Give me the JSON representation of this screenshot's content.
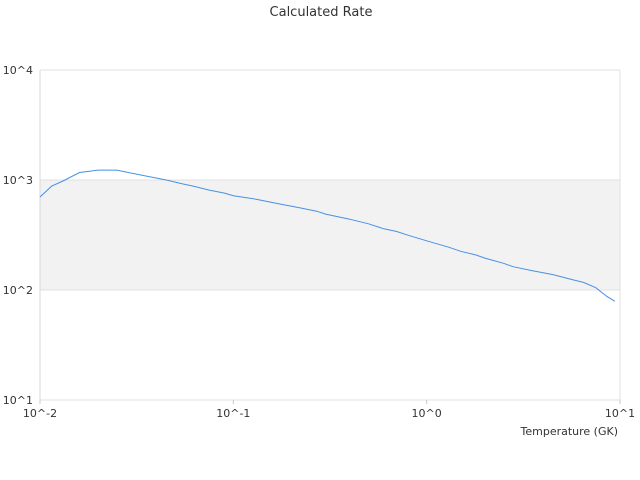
{
  "chart_data": {
    "type": "line",
    "title": "Calculated Rate",
    "xlabel": "Temperature (GK)",
    "ylabel": "",
    "x_scale": "log",
    "y_scale": "log",
    "xlim": [
      0.01,
      10
    ],
    "ylim": [
      10,
      10000
    ],
    "x_ticks": [
      {
        "value": 0.01,
        "label": "10^-2"
      },
      {
        "value": 0.1,
        "label": "10^-1"
      },
      {
        "value": 1,
        "label": "10^0"
      },
      {
        "value": 10,
        "label": "10^1"
      }
    ],
    "y_ticks": [
      {
        "value": 10,
        "label": "10^1"
      },
      {
        "value": 100,
        "label": "10^2"
      },
      {
        "value": 1000,
        "label": "10^3"
      },
      {
        "value": 10000,
        "label": "10^4"
      }
    ],
    "grid": true,
    "legend": "none",
    "band_colors": [
      "#ffffff",
      "#f2f2f2",
      "#ffffff"
    ],
    "series": [
      {
        "color": "#4a90e2",
        "points": [
          [
            0.01,
            700
          ],
          [
            0.0115,
            880
          ],
          [
            0.013,
            970
          ],
          [
            0.016,
            1170
          ],
          [
            0.02,
            1230
          ],
          [
            0.025,
            1230
          ],
          [
            0.028,
            1180
          ],
          [
            0.035,
            1090
          ],
          [
            0.045,
            1000
          ],
          [
            0.055,
            920
          ],
          [
            0.062,
            880
          ],
          [
            0.075,
            810
          ],
          [
            0.09,
            760
          ],
          [
            0.1,
            720
          ],
          [
            0.13,
            670
          ],
          [
            0.17,
            610
          ],
          [
            0.22,
            560
          ],
          [
            0.27,
            520
          ],
          [
            0.3,
            490
          ],
          [
            0.4,
            440
          ],
          [
            0.5,
            400
          ],
          [
            0.6,
            360
          ],
          [
            0.7,
            340
          ],
          [
            0.8,
            315
          ],
          [
            1.0,
            280
          ],
          [
            1.3,
            245
          ],
          [
            1.5,
            225
          ],
          [
            1.8,
            208
          ],
          [
            2.0,
            195
          ],
          [
            2.5,
            175
          ],
          [
            2.8,
            163
          ],
          [
            3.5,
            150
          ],
          [
            4.5,
            138
          ],
          [
            5.5,
            126
          ],
          [
            6.5,
            117
          ],
          [
            7.5,
            105
          ],
          [
            8.5,
            88
          ],
          [
            9.4,
            79
          ]
        ]
      }
    ]
  }
}
